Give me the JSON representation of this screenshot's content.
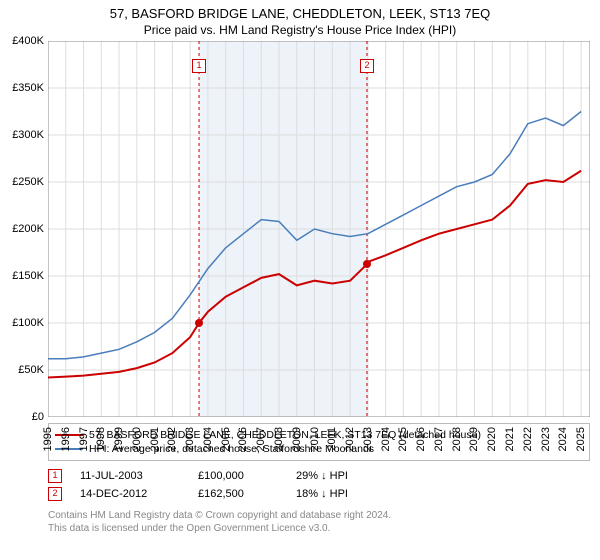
{
  "header": {
    "title": "57, BASFORD BRIDGE LANE, CHEDDLETON, LEEK, ST13 7EQ",
    "subtitle": "Price paid vs. HM Land Registry's House Price Index (HPI)"
  },
  "chart": {
    "type": "line",
    "xlim": [
      1995,
      2025.5
    ],
    "ylim": [
      0,
      400000
    ],
    "ytick_step": 50000,
    "yticks": [
      "£0",
      "£50K",
      "£100K",
      "£150K",
      "£200K",
      "£250K",
      "£300K",
      "£350K",
      "£400K"
    ],
    "xticks": [
      1995,
      1996,
      1997,
      1998,
      1999,
      2000,
      2001,
      2002,
      2003,
      2004,
      2005,
      2006,
      2007,
      2008,
      2009,
      2010,
      2011,
      2012,
      2013,
      2014,
      2015,
      2016,
      2017,
      2018,
      2019,
      2020,
      2021,
      2022,
      2023,
      2024,
      2025
    ],
    "grid_color": "#dddddd",
    "background_color": "#ffffff",
    "band": {
      "start": 2003.5,
      "end": 2012.95,
      "color": "#e8f0f8"
    },
    "series": [
      {
        "name": "property",
        "color": "#cc0000",
        "line_width": 2,
        "points": [
          [
            1995,
            42000
          ],
          [
            1996,
            43000
          ],
          [
            1997,
            44000
          ],
          [
            1998,
            46000
          ],
          [
            1999,
            48000
          ],
          [
            2000,
            52000
          ],
          [
            2001,
            58000
          ],
          [
            2002,
            68000
          ],
          [
            2003,
            85000
          ],
          [
            2003.5,
            100000
          ],
          [
            2004,
            112000
          ],
          [
            2005,
            128000
          ],
          [
            2006,
            138000
          ],
          [
            2007,
            148000
          ],
          [
            2008,
            152000
          ],
          [
            2009,
            140000
          ],
          [
            2010,
            145000
          ],
          [
            2011,
            142000
          ],
          [
            2012,
            145000
          ],
          [
            2012.95,
            162500
          ],
          [
            2013,
            165000
          ],
          [
            2014,
            172000
          ],
          [
            2015,
            180000
          ],
          [
            2016,
            188000
          ],
          [
            2017,
            195000
          ],
          [
            2018,
            200000
          ],
          [
            2019,
            205000
          ],
          [
            2020,
            210000
          ],
          [
            2021,
            225000
          ],
          [
            2022,
            248000
          ],
          [
            2023,
            252000
          ],
          [
            2024,
            250000
          ],
          [
            2025,
            262000
          ]
        ]
      },
      {
        "name": "hpi",
        "color": "#4a7ebb",
        "line_width": 1.5,
        "points": [
          [
            1995,
            62000
          ],
          [
            1996,
            62000
          ],
          [
            1997,
            64000
          ],
          [
            1998,
            68000
          ],
          [
            1999,
            72000
          ],
          [
            2000,
            80000
          ],
          [
            2001,
            90000
          ],
          [
            2002,
            105000
          ],
          [
            2003,
            130000
          ],
          [
            2004,
            158000
          ],
          [
            2005,
            180000
          ],
          [
            2006,
            195000
          ],
          [
            2007,
            210000
          ],
          [
            2008,
            208000
          ],
          [
            2009,
            188000
          ],
          [
            2010,
            200000
          ],
          [
            2011,
            195000
          ],
          [
            2012,
            192000
          ],
          [
            2013,
            195000
          ],
          [
            2014,
            205000
          ],
          [
            2015,
            215000
          ],
          [
            2016,
            225000
          ],
          [
            2017,
            235000
          ],
          [
            2018,
            245000
          ],
          [
            2019,
            250000
          ],
          [
            2020,
            258000
          ],
          [
            2021,
            280000
          ],
          [
            2022,
            312000
          ],
          [
            2023,
            318000
          ],
          [
            2024,
            310000
          ],
          [
            2025,
            325000
          ]
        ]
      }
    ],
    "sale_markers": [
      {
        "n": "1",
        "x": 2003.5,
        "y": 100000,
        "box_y": 45000,
        "color": "#cc0000"
      },
      {
        "n": "2",
        "x": 2012.95,
        "y": 162500,
        "box_y": 45000,
        "color": "#cc0000"
      }
    ]
  },
  "legend": {
    "items": [
      {
        "color": "#cc0000",
        "label": "57, BASFORD BRIDGE LANE, CHEDDLETON, LEEK, ST13 7EQ (detached house)"
      },
      {
        "color": "#4a7ebb",
        "label": "HPI: Average price, detached house, Staffordshire Moorlands"
      }
    ]
  },
  "sales": [
    {
      "n": "1",
      "date": "11-JUL-2003",
      "price": "£100,000",
      "delta": "29% ↓ HPI"
    },
    {
      "n": "2",
      "date": "14-DEC-2012",
      "price": "£162,500",
      "delta": "18% ↓ HPI"
    }
  ],
  "footer": {
    "line1": "Contains HM Land Registry data © Crown copyright and database right 2024.",
    "line2": "This data is licensed under the Open Government Licence v3.0."
  }
}
